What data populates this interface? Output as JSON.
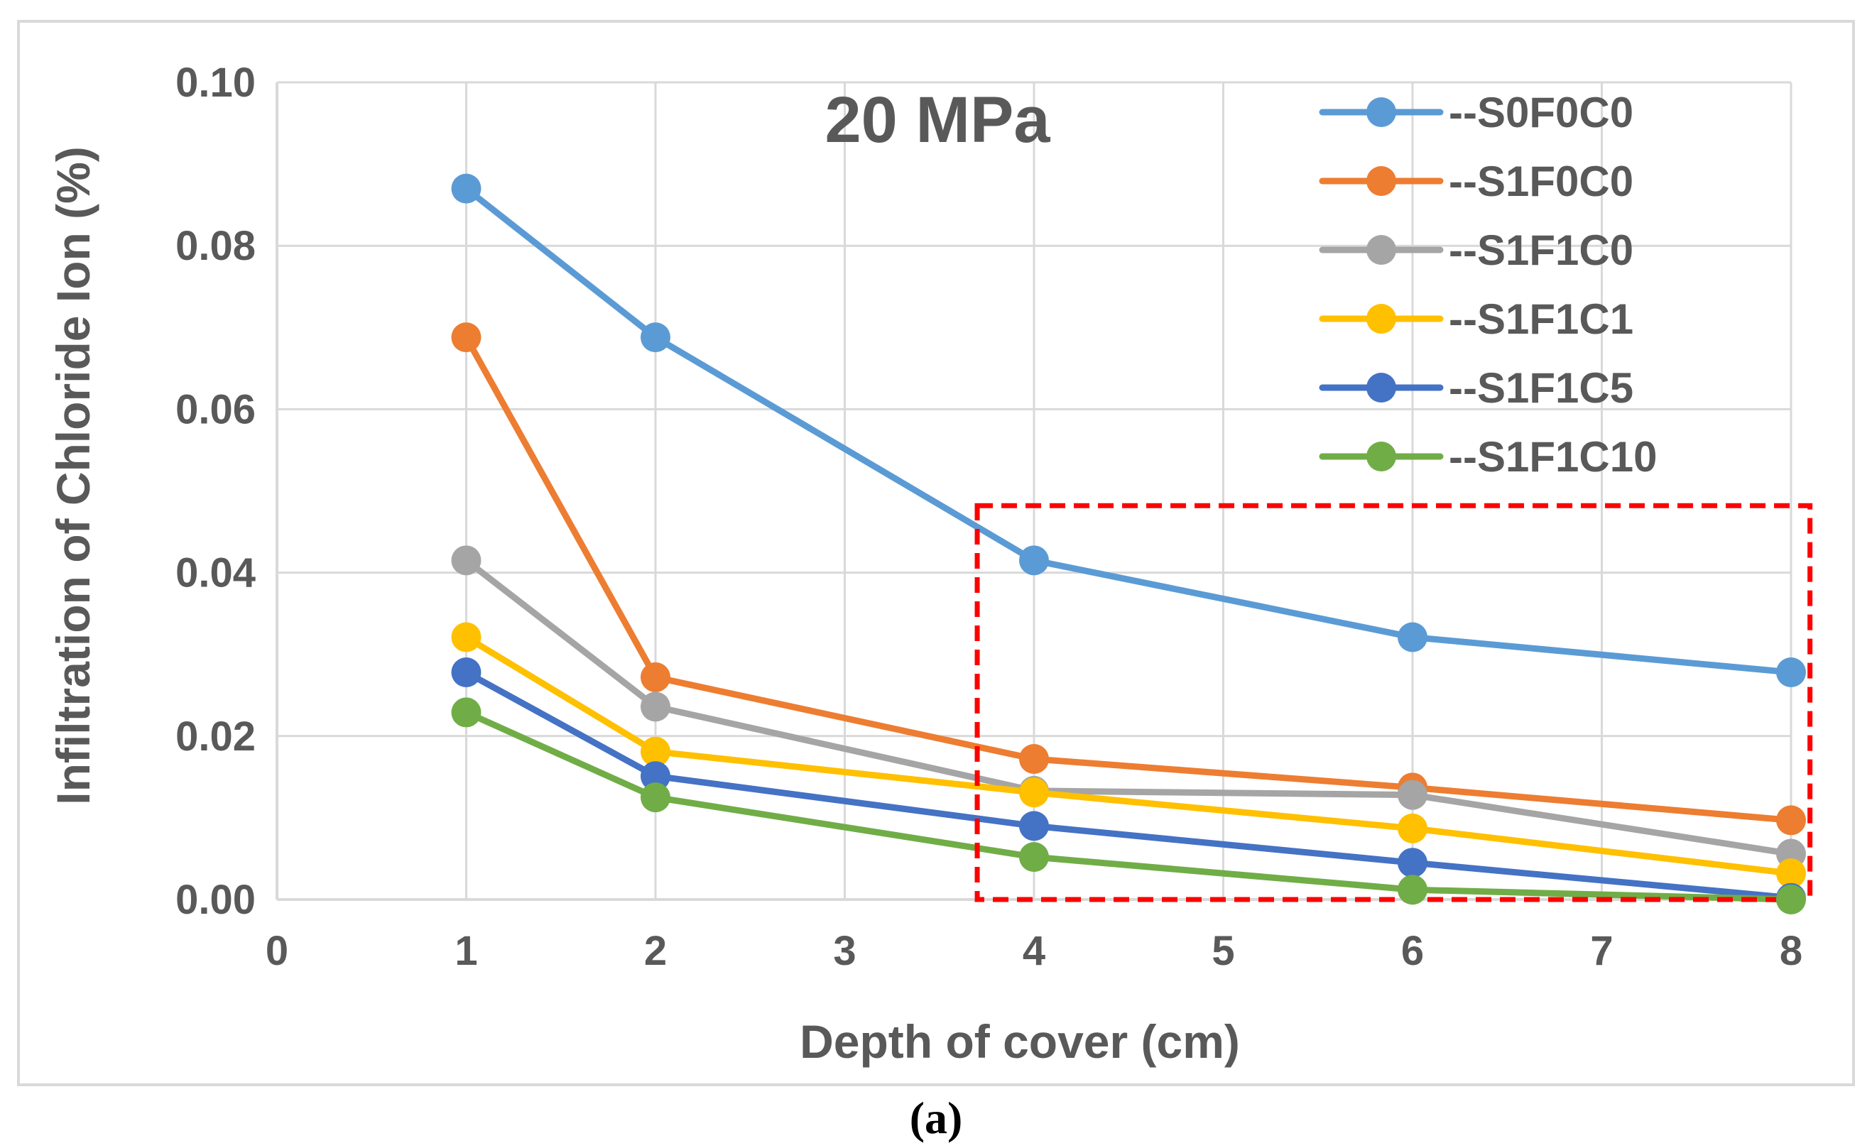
{
  "chart_data": {
    "type": "line",
    "title": "20 MPa",
    "xlabel": "Depth of cover (cm)",
    "ylabel": "Infiltration of Chloride Ion (%)",
    "xlim": [
      0,
      8
    ],
    "ylim": [
      0,
      0.1
    ],
    "x_ticks": [
      "0",
      "1",
      "2",
      "3",
      "4",
      "5",
      "6",
      "7",
      "8"
    ],
    "y_ticks": [
      "0.00",
      "0.02",
      "0.04",
      "0.06",
      "0.08",
      "0.10"
    ],
    "grid": true,
    "legend_position": "top-right",
    "x": [
      1,
      2,
      4,
      6,
      8
    ],
    "series": [
      {
        "name": "--S0F0C0",
        "color": "#5b9bd5",
        "values": [
          0.087,
          0.0688,
          0.0415,
          0.0321,
          0.0278
        ]
      },
      {
        "name": "--S1F0C0",
        "color": "#ed7d31",
        "values": [
          0.0688,
          0.0272,
          0.0172,
          0.0137,
          0.0097
        ]
      },
      {
        "name": "--S1F1C0",
        "color": "#a5a5a5",
        "values": [
          0.0415,
          0.0236,
          0.0133,
          0.0128,
          0.0056
        ]
      },
      {
        "name": "--S1F1C1",
        "color": "#ffc000",
        "values": [
          0.0321,
          0.0181,
          0.0131,
          0.0087,
          0.0032
        ]
      },
      {
        "name": "--S1F1C5",
        "color": "#4472c4",
        "values": [
          0.0278,
          0.0151,
          0.009,
          0.0045,
          0.0002
        ]
      },
      {
        "name": "--S1F1C10",
        "color": "#70ad47",
        "values": [
          0.0229,
          0.0125,
          0.0052,
          0.0012,
          0.0
        ]
      }
    ],
    "annotations": [
      {
        "type": "dashed-rectangle",
        "color": "#ff0000",
        "x_range": [
          3.7,
          8.1
        ],
        "y_range": [
          0.0,
          0.0482
        ]
      }
    ]
  },
  "caption": "(a)"
}
